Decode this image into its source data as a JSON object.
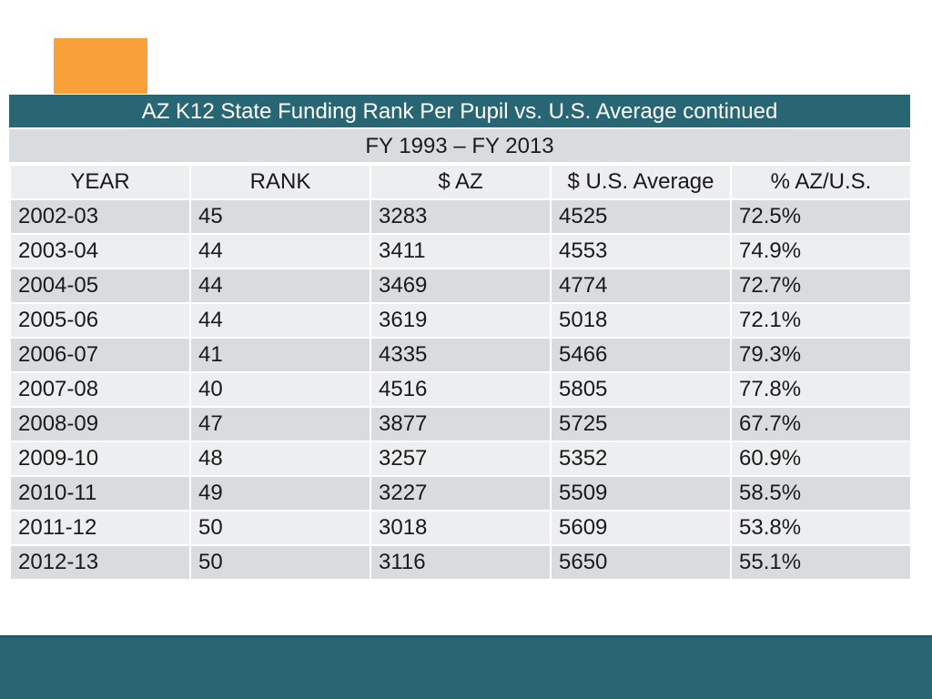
{
  "slide": {
    "title": "AZ K12 State Funding Rank Per Pupil vs. U.S. Average continued",
    "subtitle": "FY 1993 – FY 2013",
    "accent_color": "#f8a13a",
    "header_color": "#286674"
  },
  "table": {
    "headers": [
      "YEAR",
      "RANK",
      "$ AZ",
      "$ U.S. Average",
      "% AZ/U.S."
    ],
    "rows": [
      [
        "2002-03",
        "45",
        "3283",
        "4525",
        "72.5%"
      ],
      [
        "2003-04",
        "44",
        "3411",
        "4553",
        "74.9%"
      ],
      [
        "2004-05",
        "44",
        "3469",
        "4774",
        "72.7%"
      ],
      [
        "2005-06",
        "44",
        "3619",
        "5018",
        "72.1%"
      ],
      [
        "2006-07",
        "41",
        "4335",
        "5466",
        "79.3%"
      ],
      [
        "2007-08",
        "40",
        "4516",
        "5805",
        "77.8%"
      ],
      [
        "2008-09",
        "47",
        "3877",
        "5725",
        "67.7%"
      ],
      [
        "2009-10",
        "48",
        "3257",
        "5352",
        "60.9%"
      ],
      [
        "2010-11",
        "49",
        "3227",
        "5509",
        "58.5%"
      ],
      [
        "2011-12",
        "50",
        "3018",
        "5609",
        "53.8%"
      ],
      [
        "2012-13",
        "50",
        "3116",
        "5650",
        "55.1%"
      ]
    ]
  }
}
